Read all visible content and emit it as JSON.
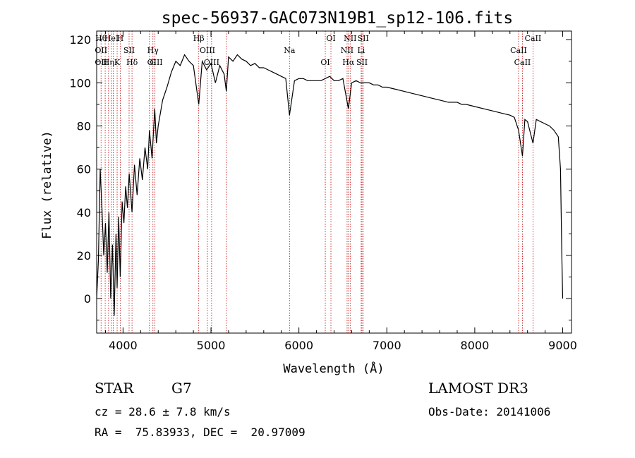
{
  "chart_data": {
    "type": "line",
    "title": "spec-56937-GAC073N19B1_sp12-106.fits",
    "xlabel": "Wavelength (Å)",
    "ylabel": "Flux (relative)",
    "xlim": [
      3700,
      9100
    ],
    "ylim": [
      -16,
      124
    ],
    "x_ticks": [
      4000,
      5000,
      6000,
      7000,
      8000,
      9000
    ],
    "y_ticks": [
      0,
      20,
      40,
      60,
      80,
      100,
      120
    ],
    "series": [
      {
        "name": "spectrum",
        "x": [
          3700,
          3720,
          3740,
          3760,
          3780,
          3800,
          3820,
          3840,
          3860,
          3880,
          3900,
          3920,
          3933,
          3950,
          3968,
          3990,
          4010,
          4030,
          4050,
          4070,
          4102,
          4130,
          4160,
          4190,
          4220,
          4250,
          4280,
          4300,
          4330,
          4360,
          4380,
          4400,
          4450,
          4500,
          4550,
          4600,
          4650,
          4700,
          4750,
          4800,
          4861,
          4900,
          4950,
          5000,
          5050,
          5100,
          5150,
          5175,
          5200,
          5250,
          5300,
          5350,
          5400,
          5450,
          5500,
          5550,
          5600,
          5650,
          5700,
          5750,
          5800,
          5850,
          5893,
          5950,
          6000,
          6050,
          6100,
          6150,
          6200,
          6250,
          6300,
          6350,
          6400,
          6450,
          6500,
          6563,
          6600,
          6650,
          6700,
          6750,
          6800,
          6850,
          6900,
          6950,
          7000,
          7100,
          7200,
          7300,
          7400,
          7500,
          7600,
          7700,
          7800,
          7850,
          7900,
          8000,
          8100,
          8200,
          8300,
          8400,
          8450,
          8498,
          8542,
          8570,
          8600,
          8662,
          8700,
          8750,
          8800,
          8850,
          8900,
          8950,
          8975,
          8990,
          9000
        ],
        "y": [
          0,
          18,
          60,
          42,
          20,
          35,
          12,
          40,
          0,
          25,
          -8,
          30,
          5,
          38,
          10,
          45,
          35,
          52,
          42,
          58,
          40,
          62,
          48,
          65,
          55,
          70,
          60,
          78,
          65,
          88,
          72,
          80,
          92,
          98,
          105,
          110,
          108,
          113,
          110,
          108,
          90,
          110,
          106,
          109,
          100,
          108,
          104,
          96,
          112,
          110,
          113,
          111,
          110,
          108,
          109,
          107,
          107,
          106,
          105,
          104,
          103,
          102,
          85,
          101,
          102,
          102,
          101,
          101,
          101,
          101,
          102,
          103,
          101,
          101,
          102,
          88,
          100,
          101,
          100,
          100,
          100,
          99,
          99,
          98,
          98,
          97,
          96,
          95,
          94,
          93,
          92,
          91,
          91,
          90,
          90,
          89,
          88,
          87,
          86,
          85,
          84,
          78,
          66,
          83,
          82,
          72,
          83,
          82,
          81,
          80,
          78,
          75,
          60,
          20,
          0
        ]
      }
    ],
    "lines": [
      {
        "w": 3750,
        "labels": [
          "Hθ",
          "OII",
          "OII"
        ]
      },
      {
        "w": 3797,
        "labels": []
      },
      {
        "w": 3835,
        "labels": [
          "Hη"
        ]
      },
      {
        "w": 3869,
        "labels": [
          "HeI"
        ]
      },
      {
        "w": 3889,
        "labels": []
      },
      {
        "w": 3933,
        "labels": [
          "K"
        ]
      },
      {
        "w": 3968,
        "labels": [
          "H"
        ]
      },
      {
        "w": 4069,
        "labels": [
          "SII"
        ]
      },
      {
        "w": 4102,
        "labels": [
          "Hδ"
        ]
      },
      {
        "w": 4300,
        "labels": []
      },
      {
        "w": 4340,
        "labels": [
          "Hγ",
          "G"
        ]
      },
      {
        "w": 4363,
        "labels": [
          "OIII"
        ]
      },
      {
        "w": 4861,
        "labels": [
          "Hβ"
        ]
      },
      {
        "w": 4959,
        "labels": [
          "OIII"
        ]
      },
      {
        "w": 5007,
        "labels": [
          "OIII"
        ]
      },
      {
        "w": 5175,
        "labels": []
      },
      {
        "w": 5893,
        "labels": [
          "Na"
        ]
      },
      {
        "w": 6300,
        "labels": [
          "OI"
        ]
      },
      {
        "w": 6364,
        "labels": [
          "OI"
        ]
      },
      {
        "w": 6548,
        "labels": [
          "NII"
        ]
      },
      {
        "w": 6563,
        "labels": [
          "Hα"
        ]
      },
      {
        "w": 6583,
        "labels": [
          "NII"
        ]
      },
      {
        "w": 6708,
        "labels": [
          "Li"
        ]
      },
      {
        "w": 6717,
        "labels": [
          "SII"
        ]
      },
      {
        "w": 6731,
        "labels": [
          "SII"
        ]
      },
      {
        "w": 8498,
        "labels": [
          "CaII"
        ]
      },
      {
        "w": 8542,
        "labels": [
          "CaII"
        ]
      },
      {
        "w": 8662,
        "labels": [
          "CaII"
        ]
      }
    ]
  },
  "info": {
    "class": "STAR",
    "subclass": "G7",
    "cz": "cz = 28.6 ± 7.8 km/s",
    "radec": "RA =  75.83933, DEC =  20.97009",
    "survey": "LAMOST DR3",
    "obs_date": "Obs-Date: 20141006"
  },
  "colors": {
    "line_marker": "#c00000",
    "spectrum": "#000000"
  }
}
